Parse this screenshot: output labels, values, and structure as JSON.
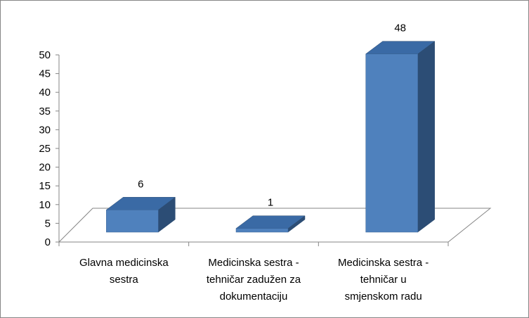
{
  "chart_data": {
    "type": "bar",
    "style": "3d-clustered-column",
    "categories": [
      [
        "Glavna medicinska",
        "sestra"
      ],
      [
        "Medicinska sestra -",
        "tehničar zadužen za",
        "dokumentaciju"
      ],
      [
        "Medicinska sestra -",
        "tehničar u",
        "smjenskom radu"
      ]
    ],
    "values": [
      6,
      1,
      48
    ],
    "data_labels": [
      "6",
      "1",
      "48"
    ],
    "title": "",
    "xlabel": "",
    "ylabel": "",
    "ylim": [
      0,
      50
    ],
    "yticks": [
      "0",
      "5",
      "10",
      "15",
      "20",
      "25",
      "30",
      "35",
      "40",
      "45",
      "50"
    ],
    "grid": false,
    "legend": "none",
    "colors": {
      "bar_front": "#4f81bd",
      "bar_top": "#3a6aa5",
      "bar_side": "#2c4d75",
      "axis": "#868686",
      "frame": "#868686"
    }
  }
}
